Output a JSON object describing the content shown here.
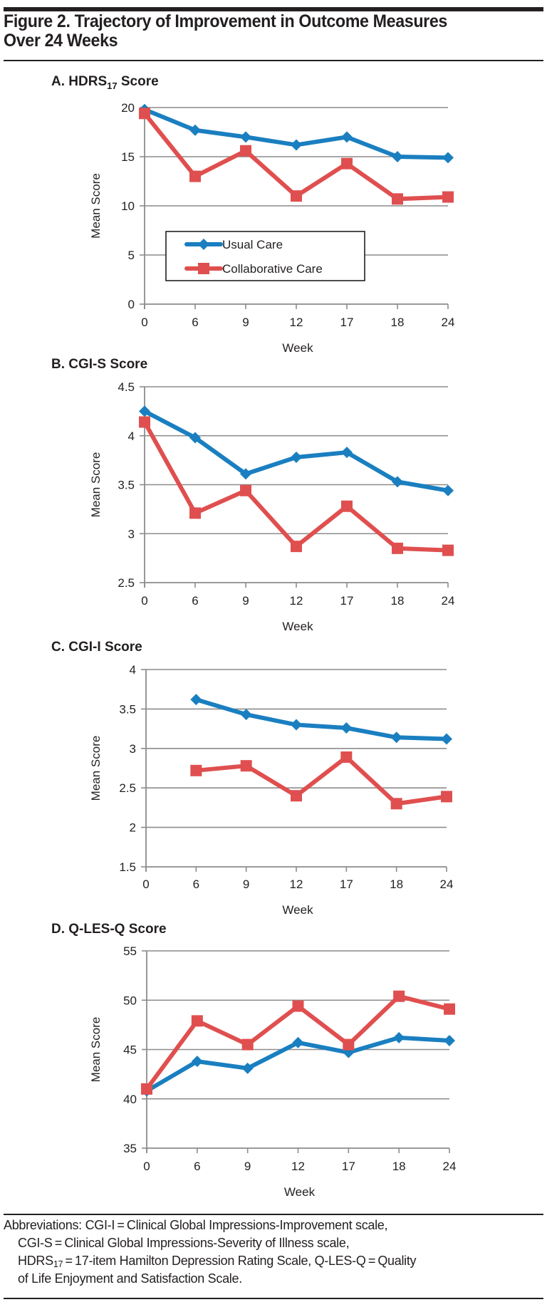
{
  "figure": {
    "title_line1": "Figure 2. Trajectory of Improvement in Outcome Measures",
    "title_line2": "Over 24 Weeks"
  },
  "colors": {
    "usual_care": "#1a7fc0",
    "collaborative_care": "#e04f4f",
    "gridline": "#8c8c8c",
    "text": "#231f20"
  },
  "legend": {
    "entries": [
      {
        "name": "Usual Care",
        "marker": "diamond"
      },
      {
        "name": "Collaborative Care",
        "marker": "square"
      }
    ],
    "placement": "inside panel A, lower-left"
  },
  "chart_data": [
    {
      "type": "line",
      "title": "A. HDRS17 Score",
      "title_prefix": "A. HDRS",
      "title_sub": "17",
      "title_suffix": " Score",
      "xlabel": "Week",
      "ylabel": "Mean Score",
      "categories": [
        "0",
        "6",
        "9",
        "12",
        "17",
        "18",
        "24"
      ],
      "ylim": [
        0,
        20
      ],
      "yticks": [
        0,
        5,
        10,
        15,
        20
      ],
      "ytick_labels": [
        "0",
        "5",
        "10",
        "15",
        "20"
      ],
      "grid": true,
      "show_legend": true,
      "series": [
        {
          "name": "Usual Care",
          "values": [
            19.8,
            17.7,
            17.0,
            16.2,
            17.0,
            15.0,
            14.9
          ]
        },
        {
          "name": "Collaborative Care",
          "values": [
            19.4,
            13.0,
            15.6,
            11.0,
            14.3,
            10.7,
            10.9
          ]
        }
      ]
    },
    {
      "type": "line",
      "title": "B. CGI-S Score",
      "title_prefix": "B. CGI-S Score",
      "title_sub": "",
      "title_suffix": "",
      "xlabel": "Week",
      "ylabel": "Mean Score",
      "categories": [
        "0",
        "6",
        "9",
        "12",
        "17",
        "18",
        "24"
      ],
      "ylim": [
        2.5,
        4.5
      ],
      "yticks": [
        2.5,
        3,
        3.5,
        4,
        4.5
      ],
      "ytick_labels": [
        "2.5",
        "3",
        "3.5",
        "4",
        "4.5"
      ],
      "grid": true,
      "show_legend": false,
      "series": [
        {
          "name": "Usual Care",
          "values": [
            4.25,
            3.98,
            3.61,
            3.78,
            3.83,
            3.53,
            3.44
          ]
        },
        {
          "name": "Collaborative Care",
          "values": [
            4.14,
            3.21,
            3.44,
            2.87,
            3.28,
            2.85,
            2.83
          ]
        }
      ]
    },
    {
      "type": "line",
      "title": "C. CGI-I Score",
      "title_prefix": "C. CGI-I Score",
      "title_sub": "",
      "title_suffix": "",
      "xlabel": "Week",
      "ylabel": "Mean Score",
      "categories": [
        "0",
        "6",
        "9",
        "12",
        "17",
        "18",
        "24"
      ],
      "ylim": [
        1.5,
        4
      ],
      "yticks": [
        1.5,
        2,
        2.5,
        3,
        3.5,
        4
      ],
      "ytick_labels": [
        "1.5",
        "2",
        "2.5",
        "3",
        "3.5",
        "4"
      ],
      "grid": true,
      "show_legend": false,
      "series": [
        {
          "name": "Usual Care",
          "values": [
            null,
            3.62,
            3.43,
            3.3,
            3.26,
            3.14,
            3.12
          ]
        },
        {
          "name": "Collaborative Care",
          "values": [
            null,
            2.72,
            2.78,
            2.4,
            2.89,
            2.3,
            2.39
          ]
        }
      ]
    },
    {
      "type": "line",
      "title": "D. Q-LES-Q Score",
      "title_prefix": "D. Q-LES-Q Score",
      "title_sub": "",
      "title_suffix": "",
      "xlabel": "Week",
      "ylabel": "Mean Score",
      "categories": [
        "0",
        "6",
        "9",
        "12",
        "17",
        "18",
        "24"
      ],
      "ylim": [
        35,
        55
      ],
      "yticks": [
        35,
        40,
        45,
        50,
        55
      ],
      "ytick_labels": [
        "35",
        "40",
        "45",
        "50",
        "55"
      ],
      "grid": true,
      "show_legend": false,
      "series": [
        {
          "name": "Usual Care",
          "values": [
            40.8,
            43.8,
            43.1,
            45.7,
            44.7,
            46.2,
            45.9
          ]
        },
        {
          "name": "Collaborative Care",
          "values": [
            41.0,
            47.9,
            45.5,
            49.4,
            45.5,
            50.4,
            49.1
          ]
        }
      ]
    }
  ],
  "footnote": {
    "line1": "Abbreviations: CGI-I = Clinical Global Impressions-Improvement scale,",
    "line2": "CGI-S = Clinical Global Impressions-Severity of Illness scale,",
    "line3_prefix": "HDRS",
    "line3_sub": "17",
    "line3_suffix": " = 17-item Hamilton Depression Rating Scale, Q-LES-Q = Quality",
    "line4": "of Life Enjoyment and Satisfaction Scale."
  }
}
